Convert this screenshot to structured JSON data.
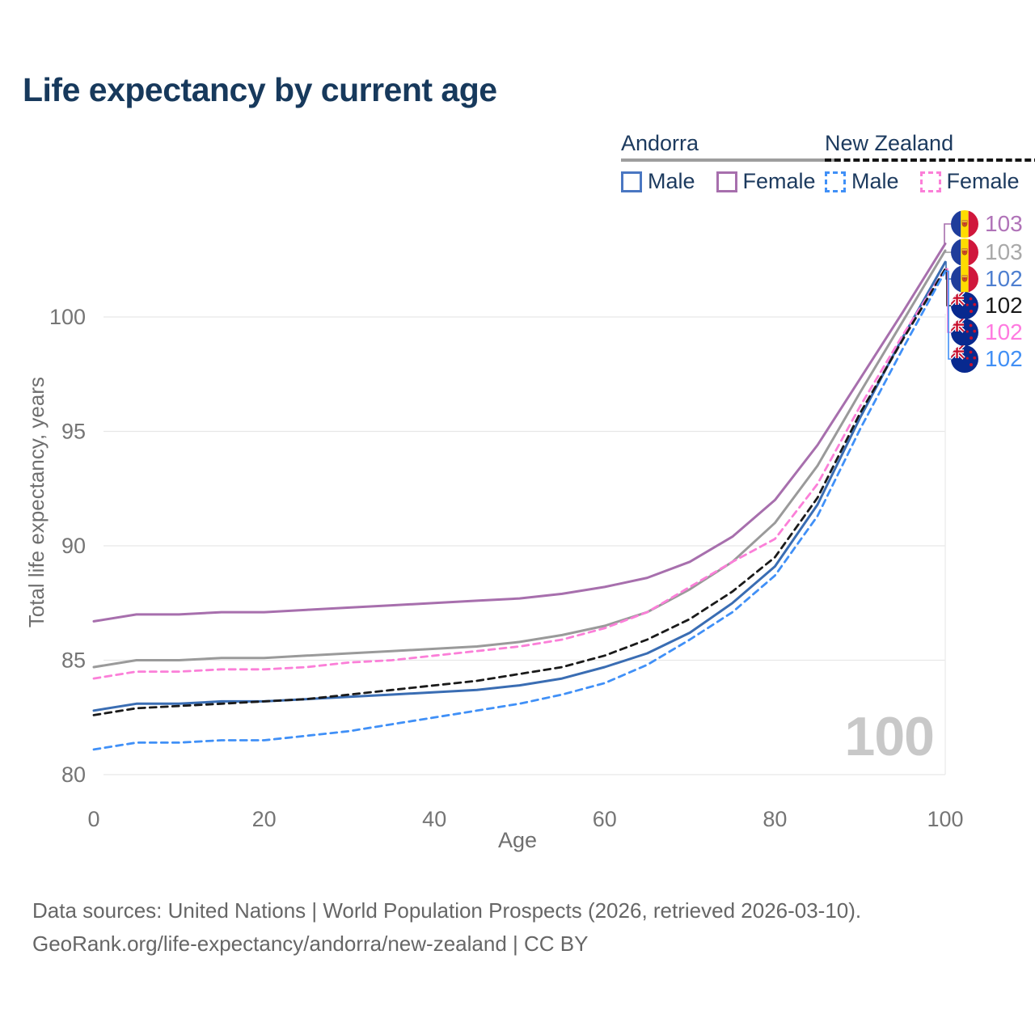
{
  "title": "Life expectancy by current age",
  "legend": {
    "groups": [
      {
        "label": "Andorra",
        "style": "solid",
        "items": [
          {
            "label": "Male"
          },
          {
            "label": "Female"
          }
        ]
      },
      {
        "label": "New Zealand",
        "style": "dashed",
        "items": [
          {
            "label": "Male"
          },
          {
            "label": "Female"
          }
        ]
      }
    ]
  },
  "watermark": "100",
  "footer": {
    "line1": "Data sources: United Nations | World Population Prospects (2026, retrieved 2026-03-10).",
    "line2": "GeoRank.org/life-expectancy/andorra/new-zealand | CC BY"
  },
  "chart_data": {
    "type": "line",
    "title": "Life expectancy by current age",
    "xlabel": "Age",
    "ylabel": "Total life expectancy, years",
    "xlim": [
      0,
      100
    ],
    "ylim": [
      79.5,
      103.5
    ],
    "x_ticks": [
      0,
      20,
      40,
      60,
      80,
      100
    ],
    "y_ticks": [
      80,
      85,
      90,
      95,
      100
    ],
    "grid": "horizontal",
    "x": [
      0,
      5,
      10,
      15,
      20,
      25,
      30,
      35,
      40,
      45,
      50,
      55,
      60,
      65,
      70,
      75,
      80,
      85,
      90,
      95,
      100
    ],
    "series": [
      {
        "name": "Andorra Female",
        "color": "#a76fad",
        "dashed": false,
        "values": [
          86.7,
          87.0,
          87.0,
          87.1,
          87.1,
          87.2,
          87.3,
          87.4,
          87.5,
          87.6,
          87.7,
          87.9,
          88.2,
          88.6,
          89.3,
          90.4,
          92.0,
          94.4,
          97.3,
          100.2,
          103.2
        ]
      },
      {
        "name": "Andorra Both sexes",
        "color": "#9a9a9a",
        "dashed": false,
        "values": [
          84.7,
          85.0,
          85.0,
          85.1,
          85.1,
          85.2,
          85.3,
          85.4,
          85.5,
          85.6,
          85.8,
          86.1,
          86.5,
          87.1,
          88.1,
          89.3,
          91.0,
          93.5,
          96.7,
          99.8,
          102.9
        ]
      },
      {
        "name": "Andorra Male",
        "color": "#3a6db3",
        "dashed": false,
        "values": [
          82.8,
          83.1,
          83.1,
          83.2,
          83.2,
          83.3,
          83.4,
          83.5,
          83.6,
          83.7,
          83.9,
          84.2,
          84.7,
          85.3,
          86.2,
          87.5,
          89.1,
          91.8,
          95.6,
          99.1,
          102.4
        ]
      },
      {
        "name": "New Zealand Both sexes",
        "color": "#1a1a1a",
        "dashed": true,
        "values": [
          82.6,
          82.9,
          83.0,
          83.1,
          83.2,
          83.3,
          83.5,
          83.7,
          83.9,
          84.1,
          84.4,
          84.7,
          85.2,
          85.9,
          86.8,
          88.0,
          89.5,
          92.1,
          95.8,
          99.0,
          102.1
        ]
      },
      {
        "name": "New Zealand Female",
        "color": "#fb7fd8",
        "dashed": true,
        "values": [
          84.2,
          84.5,
          84.5,
          84.6,
          84.6,
          84.7,
          84.9,
          85.0,
          85.2,
          85.4,
          85.6,
          85.9,
          86.4,
          87.1,
          88.2,
          89.3,
          90.3,
          92.7,
          96.1,
          99.2,
          102.1
        ]
      },
      {
        "name": "New Zealand Male",
        "color": "#4090f7",
        "dashed": true,
        "values": [
          81.1,
          81.4,
          81.4,
          81.5,
          81.5,
          81.7,
          81.9,
          82.2,
          82.5,
          82.8,
          83.1,
          83.5,
          84.0,
          84.8,
          85.9,
          87.1,
          88.7,
          91.3,
          95.1,
          98.6,
          102.0
        ]
      }
    ],
    "end_labels": [
      {
        "value": "103",
        "flag": "andorra",
        "color": "#b073b8"
      },
      {
        "value": "103",
        "flag": "andorra",
        "color": "#a9a9a9"
      },
      {
        "value": "102",
        "flag": "andorra",
        "color": "#4e7fd0"
      },
      {
        "value": "102",
        "flag": "nz",
        "color": "#1a1a1a"
      },
      {
        "value": "102",
        "flag": "nz",
        "color": "#ff7ae0"
      },
      {
        "value": "102",
        "flag": "nz",
        "color": "#418ff5"
      }
    ]
  }
}
